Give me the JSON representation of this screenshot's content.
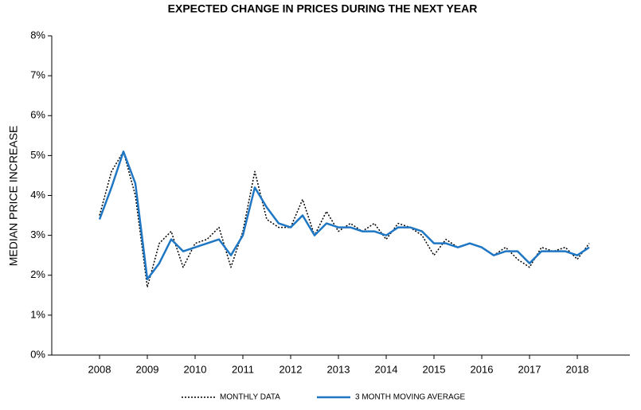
{
  "chart_data": {
    "type": "line",
    "title": "EXPECTED CHANGE IN PRICES DURING THE NEXT YEAR",
    "y_label": "MEDIAN PRICE INCREASE",
    "x": [
      2008.0,
      2008.25,
      2008.5,
      2008.75,
      2009.0,
      2009.25,
      2009.5,
      2009.75,
      2010.0,
      2010.25,
      2010.5,
      2010.75,
      2011.0,
      2011.25,
      2011.5,
      2011.75,
      2012.0,
      2012.25,
      2012.5,
      2012.75,
      2013.0,
      2013.25,
      2013.5,
      2013.75,
      2014.0,
      2014.25,
      2014.5,
      2014.75,
      2015.0,
      2015.25,
      2015.5,
      2015.75,
      2016.0,
      2016.25,
      2016.5,
      2016.75,
      2017.0,
      2017.25,
      2017.5,
      2017.75,
      2018.0,
      2018.25
    ],
    "series": [
      {
        "name": "MONTHLY DATA",
        "color": "#000000",
        "dash": "dotted",
        "values": [
          3.5,
          4.6,
          5.1,
          4.0,
          1.7,
          2.8,
          3.1,
          2.2,
          2.8,
          2.9,
          3.2,
          2.2,
          3.1,
          4.6,
          3.4,
          3.2,
          3.2,
          3.9,
          3.0,
          3.6,
          3.1,
          3.3,
          3.1,
          3.3,
          2.9,
          3.3,
          3.2,
          3.0,
          2.5,
          2.9,
          2.7,
          2.8,
          2.7,
          2.5,
          2.7,
          2.4,
          2.2,
          2.7,
          2.6,
          2.7,
          2.4,
          2.8
        ]
      },
      {
        "name": "3 MONTH MOVING AVERAGE",
        "color": "#1f77c4",
        "dash": "solid",
        "values": [
          3.4,
          4.2,
          5.1,
          4.3,
          1.9,
          2.3,
          2.9,
          2.6,
          2.7,
          2.8,
          2.9,
          2.5,
          3.0,
          4.2,
          3.7,
          3.3,
          3.2,
          3.5,
          3.0,
          3.3,
          3.2,
          3.2,
          3.1,
          3.1,
          3.0,
          3.2,
          3.2,
          3.1,
          2.8,
          2.8,
          2.7,
          2.8,
          2.7,
          2.5,
          2.6,
          2.6,
          2.3,
          2.6,
          2.6,
          2.6,
          2.5,
          2.7
        ]
      }
    ],
    "xlim": [
      2007,
      2019.1
    ],
    "xticks": [
      2008,
      2009,
      2010,
      2011,
      2012,
      2013,
      2014,
      2015,
      2016,
      2017,
      2018
    ],
    "ylim": [
      0,
      8
    ],
    "yticks": [
      {
        "value": 0,
        "label": "0%"
      },
      {
        "value": 1,
        "label": "1%"
      },
      {
        "value": 2,
        "label": "2%"
      },
      {
        "value": 3,
        "label": "3%"
      },
      {
        "value": 4,
        "label": "4%"
      },
      {
        "value": 5,
        "label": "5%"
      },
      {
        "value": 6,
        "label": "6%"
      },
      {
        "value": 7,
        "label": "7%"
      },
      {
        "value": 8,
        "label": "8%"
      }
    ],
    "legend": "bottom"
  }
}
